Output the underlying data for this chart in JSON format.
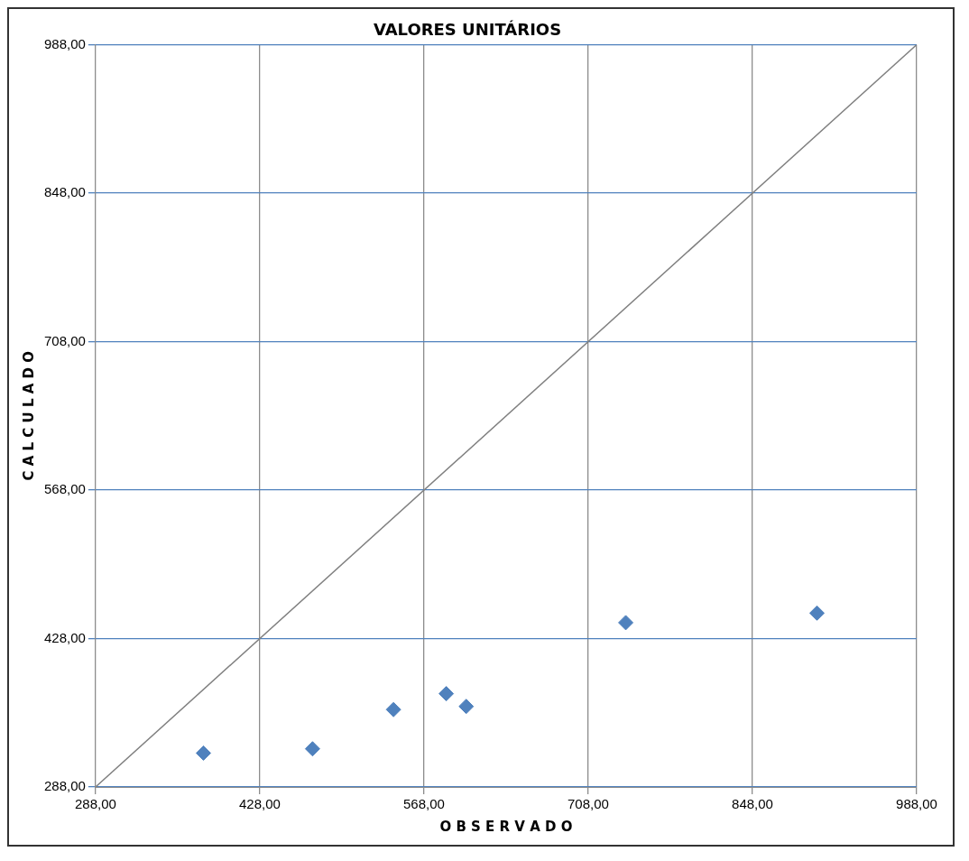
{
  "chart_data": {
    "type": "scatter",
    "title": "VALORES UNITÁRIOS",
    "xlabel": "O B S E R V A D O",
    "ylabel": "C A L C U L A D O",
    "xlim": [
      288,
      988
    ],
    "ylim": [
      288,
      988
    ],
    "xticks": [
      {
        "value": 288,
        "label": "288,00"
      },
      {
        "value": 428,
        "label": "428,00"
      },
      {
        "value": 568,
        "label": "568,00"
      },
      {
        "value": 708,
        "label": "708,00"
      },
      {
        "value": 848,
        "label": "848,00"
      },
      {
        "value": 988,
        "label": "988,00"
      }
    ],
    "yticks": [
      {
        "value": 288,
        "label": "288,00"
      },
      {
        "value": 428,
        "label": "428,00"
      },
      {
        "value": 568,
        "label": "568,00"
      },
      {
        "value": 708,
        "label": "708,00"
      },
      {
        "value": 848,
        "label": "848,00"
      },
      {
        "value": 988,
        "label": "988,00"
      }
    ],
    "grid": true,
    "legend": false,
    "marker": "diamond",
    "series": [
      {
        "color": "#4f81bd",
        "x": [
          380,
          473,
          542,
          587,
          604,
          740,
          903
        ],
        "values": [
          320,
          324,
          361,
          376,
          364,
          443,
          452
        ]
      },
      {
        "type": "line",
        "color": "#808080",
        "marker": "none",
        "x": [
          288,
          988
        ],
        "values": [
          288,
          988
        ]
      }
    ]
  }
}
